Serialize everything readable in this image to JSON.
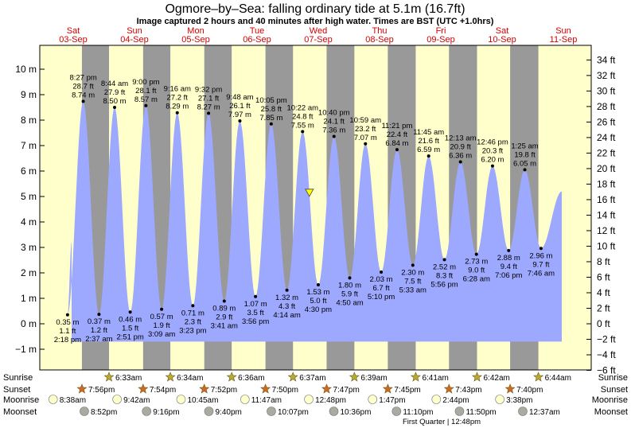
{
  "chart_data": {
    "type": "area",
    "title": "Ogmore–by–Sea: falling  ordinary tide at 5.1m (16.7ft)",
    "subtitle": "Image captured 2 hours and 40 minutes after high water. Times are BST (UTC +1.0hrs)",
    "y_left_unit": "m",
    "y_right_unit": "ft",
    "ylim_m": [
      -1.6,
      10.9
    ],
    "y_left_ticks": [
      "10 m",
      "9 m",
      "8 m",
      "7 m",
      "6 m",
      "5 m",
      "4 m",
      "3 m",
      "2 m",
      "1 m",
      "0 m",
      "−1 m"
    ],
    "y_right_ticks": [
      "34 ft",
      "32 ft",
      "30 ft",
      "28 ft",
      "26 ft",
      "24 ft",
      "22 ft",
      "20 ft",
      "18 ft",
      "16 ft",
      "14 ft",
      "12 ft",
      "10 ft",
      "8 ft",
      "6 ft",
      "4 ft",
      "2 ft",
      "0 ft",
      "−2 ft",
      "−4 ft",
      "−6 ft"
    ],
    "days": [
      {
        "name": "Sat",
        "date": "03-Sep"
      },
      {
        "name": "Sun",
        "date": "04-Sep"
      },
      {
        "name": "Mon",
        "date": "05-Sep"
      },
      {
        "name": "Tue",
        "date": "06-Sep"
      },
      {
        "name": "Wed",
        "date": "07-Sep"
      },
      {
        "name": "Thu",
        "date": "08-Sep"
      },
      {
        "name": "Fri",
        "date": "09-Sep"
      },
      {
        "name": "Sat",
        "date": "10-Sep"
      },
      {
        "name": "Sun",
        "date": "11-Sep"
      }
    ],
    "tides": [
      {
        "type": "low",
        "day": 0,
        "time": "2:18 pm",
        "m": 0.35,
        "m_label": "0.35 m",
        "ft_label": "1.1 ft"
      },
      {
        "type": "high",
        "day": 0,
        "time": "8:27 pm",
        "m": 8.74,
        "m_label": "8.74 m",
        "ft_label": "28.7 ft"
      },
      {
        "type": "low",
        "day": 1,
        "time": "2:37 am",
        "m": 0.37,
        "m_label": "0.37 m",
        "ft_label": "1.2 ft"
      },
      {
        "type": "high",
        "day": 1,
        "time": "8:44 am",
        "m": 8.5,
        "m_label": "8.50 m",
        "ft_label": "27.9 ft"
      },
      {
        "type": "low",
        "day": 1,
        "time": "2:51 pm",
        "m": 0.46,
        "m_label": "0.46 m",
        "ft_label": "1.5 ft"
      },
      {
        "type": "high",
        "day": 1,
        "time": "9:00 pm",
        "m": 8.57,
        "m_label": "8.57 m",
        "ft_label": "28.1 ft"
      },
      {
        "type": "low",
        "day": 2,
        "time": "3:09 am",
        "m": 0.57,
        "m_label": "0.57 m",
        "ft_label": "1.9 ft"
      },
      {
        "type": "high",
        "day": 2,
        "time": "9:16 am",
        "m": 8.29,
        "m_label": "8.29 m",
        "ft_label": "27.2 ft"
      },
      {
        "type": "low",
        "day": 2,
        "time": "3:23 pm",
        "m": 0.71,
        "m_label": "0.71 m",
        "ft_label": "2.3 ft"
      },
      {
        "type": "high",
        "day": 2,
        "time": "9:32 pm",
        "m": 8.27,
        "m_label": "8.27 m",
        "ft_label": "27.1 ft"
      },
      {
        "type": "low",
        "day": 3,
        "time": "3:41 am",
        "m": 0.89,
        "m_label": "0.89 m",
        "ft_label": "2.9 ft"
      },
      {
        "type": "high",
        "day": 3,
        "time": "9:48 am",
        "m": 7.97,
        "m_label": "7.97 m",
        "ft_label": "26.1 ft"
      },
      {
        "type": "low",
        "day": 3,
        "time": "3:56 pm",
        "m": 1.07,
        "m_label": "1.07 m",
        "ft_label": "3.5 ft"
      },
      {
        "type": "high",
        "day": 3,
        "time": "10:05 pm",
        "m": 7.85,
        "m_label": "7.85 m",
        "ft_label": "25.8 ft"
      },
      {
        "type": "low",
        "day": 4,
        "time": "4:14 am",
        "m": 1.32,
        "m_label": "1.32 m",
        "ft_label": "4.3 ft"
      },
      {
        "type": "high",
        "day": 4,
        "time": "10:22 am",
        "m": 7.55,
        "m_label": "7.55 m",
        "ft_label": "24.8 ft"
      },
      {
        "type": "low",
        "day": 4,
        "time": "4:30 pm",
        "m": 1.53,
        "m_label": "1.53 m",
        "ft_label": "5.0 ft"
      },
      {
        "type": "high",
        "day": 4,
        "time": "10:40 pm",
        "m": 7.36,
        "m_label": "7.36 m",
        "ft_label": "24.1 ft"
      },
      {
        "type": "low",
        "day": 5,
        "time": "4:50 am",
        "m": 1.8,
        "m_label": "1.80 m",
        "ft_label": "5.9 ft"
      },
      {
        "type": "high",
        "day": 5,
        "time": "10:59 am",
        "m": 7.07,
        "m_label": "7.07 m",
        "ft_label": "23.2 ft"
      },
      {
        "type": "low",
        "day": 5,
        "time": "5:10 pm",
        "m": 2.03,
        "m_label": "2.03 m",
        "ft_label": "6.7 ft"
      },
      {
        "type": "high",
        "day": 5,
        "time": "11:21 pm",
        "m": 6.84,
        "m_label": "6.84 m",
        "ft_label": "22.4 ft"
      },
      {
        "type": "low",
        "day": 6,
        "time": "5:33 am",
        "m": 2.3,
        "m_label": "2.30 m",
        "ft_label": "7.5 ft"
      },
      {
        "type": "high",
        "day": 6,
        "time": "11:45 am",
        "m": 6.59,
        "m_label": "6.59 m",
        "ft_label": "21.6 ft"
      },
      {
        "type": "low",
        "day": 6,
        "time": "5:56 pm",
        "m": 2.52,
        "m_label": "2.52 m",
        "ft_label": "8.3 ft"
      },
      {
        "type": "high",
        "day": 7,
        "time": "12:13 am",
        "m": 6.36,
        "m_label": "6.36 m",
        "ft_label": "20.9 ft"
      },
      {
        "type": "low",
        "day": 7,
        "time": "6:28 am",
        "m": 2.73,
        "m_label": "2.73 m",
        "ft_label": "9.0 ft"
      },
      {
        "type": "high",
        "day": 7,
        "time": "12:46 pm",
        "m": 6.2,
        "m_label": "6.20 m",
        "ft_label": "20.3 ft"
      },
      {
        "type": "low",
        "day": 7,
        "time": "7:06 pm",
        "m": 2.88,
        "m_label": "2.88 m",
        "ft_label": "9.4 ft"
      },
      {
        "type": "high",
        "day": 8,
        "time": "1:25 am",
        "m": 6.05,
        "m_label": "6.05 m",
        "ft_label": "19.8 ft"
      },
      {
        "type": "low",
        "day": 8,
        "time": "7:46 am",
        "m": 2.96,
        "m_label": "2.96 m",
        "ft_label": "9.7 ft"
      }
    ],
    "current_tide": {
      "m": 5.1,
      "ft": 16.7
    },
    "sunrise": [
      {
        "day": 1,
        "time": "6:33am"
      },
      {
        "day": 2,
        "time": "6:34am"
      },
      {
        "day": 3,
        "time": "6:36am"
      },
      {
        "day": 4,
        "time": "6:37am"
      },
      {
        "day": 5,
        "time": "6:39am"
      },
      {
        "day": 6,
        "time": "6:41am"
      },
      {
        "day": 7,
        "time": "6:42am"
      },
      {
        "day": 8,
        "time": "6:44am"
      }
    ],
    "sunset": [
      {
        "day": 0,
        "time": "7:56pm"
      },
      {
        "day": 1,
        "time": "7:54pm"
      },
      {
        "day": 2,
        "time": "7:52pm"
      },
      {
        "day": 3,
        "time": "7:50pm"
      },
      {
        "day": 4,
        "time": "7:47pm"
      },
      {
        "day": 5,
        "time": "7:45pm"
      },
      {
        "day": 6,
        "time": "7:43pm"
      },
      {
        "day": 7,
        "time": "7:40pm"
      }
    ],
    "moonrise": [
      {
        "day": 0,
        "time": "8:38am"
      },
      {
        "day": 1,
        "time": "9:42am"
      },
      {
        "day": 2,
        "time": "10:45am"
      },
      {
        "day": 3,
        "time": "11:47am"
      },
      {
        "day": 4,
        "time": "12:48pm"
      },
      {
        "day": 5,
        "time": "1:47pm"
      },
      {
        "day": 6,
        "time": "2:44pm"
      },
      {
        "day": 7,
        "time": "3:38pm"
      }
    ],
    "moonset": [
      {
        "day": 0,
        "time": "8:52pm"
      },
      {
        "day": 1,
        "time": "9:16pm"
      },
      {
        "day": 2,
        "time": "9:40pm"
      },
      {
        "day": 3,
        "time": "10:07pm"
      },
      {
        "day": 4,
        "time": "10:36pm"
      },
      {
        "day": 5,
        "time": "11:10pm"
      },
      {
        "day": 6,
        "time": "11:50pm"
      },
      {
        "day": 7,
        "time": "12:37am"
      }
    ],
    "moon_phase": "First Quarter | 12:48pm",
    "row_labels": {
      "sunrise": "Sunrise",
      "sunset": "Sunset",
      "moonrise": "Moonrise",
      "moonset": "Moonset"
    }
  },
  "colors": {
    "day_background": "#ffffcc",
    "night_background": "#999999",
    "water_fill": "#9da8ff",
    "day_label": "#d40000",
    "sun_star": "#b8ac30",
    "sunset_star": "#d2691e",
    "moonrise_disk": "#ffffcc",
    "moonset_disk": "#aaaaa0",
    "current_marker": "#ffff00"
  }
}
